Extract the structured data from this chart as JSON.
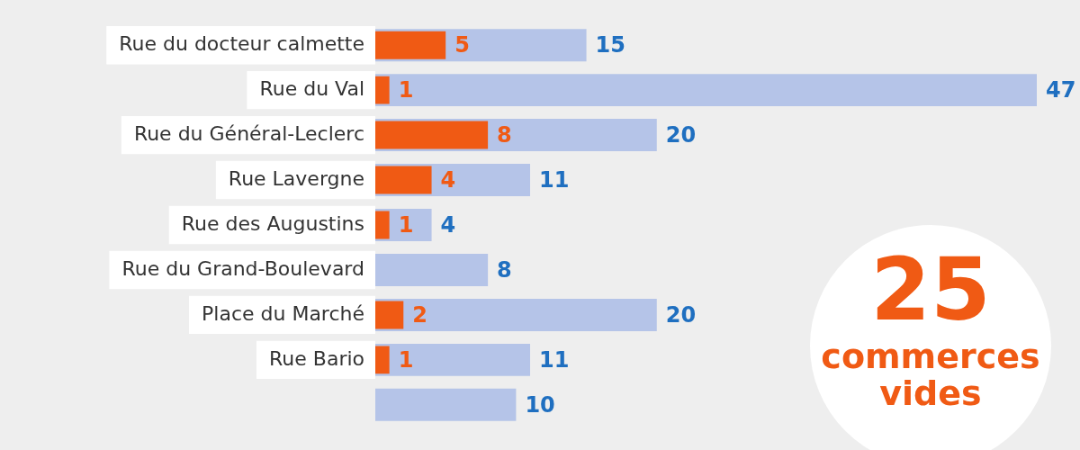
{
  "chart_data": {
    "type": "bar",
    "orientation": "horizontal",
    "categories": [
      "Rue du docteur calmette",
      "Rue du Val",
      "Rue du Général-Leclerc",
      "Rue Lavergne",
      "Rue des Augustins",
      "Rue du Grand-Boulevard",
      "Place du Marché",
      "Rue Bario",
      null
    ],
    "series": [
      {
        "color": "#b5c4e8",
        "values": [
          15,
          47,
          20,
          11,
          4,
          8,
          20,
          11,
          10
        ],
        "value_labels": [
          "15",
          "47",
          "20",
          "11",
          "4",
          "8",
          "20",
          "11",
          "10"
        ]
      },
      {
        "color": "#f05a14",
        "values": [
          5,
          1,
          8,
          4,
          1,
          null,
          2,
          1,
          null
        ],
        "value_labels": [
          "5",
          "1",
          "8",
          "4",
          "1",
          null,
          "2",
          "1",
          null
        ]
      }
    ],
    "annotations": [
      "25",
      "commerces vides"
    ],
    "grid": false,
    "legend": false
  }
}
